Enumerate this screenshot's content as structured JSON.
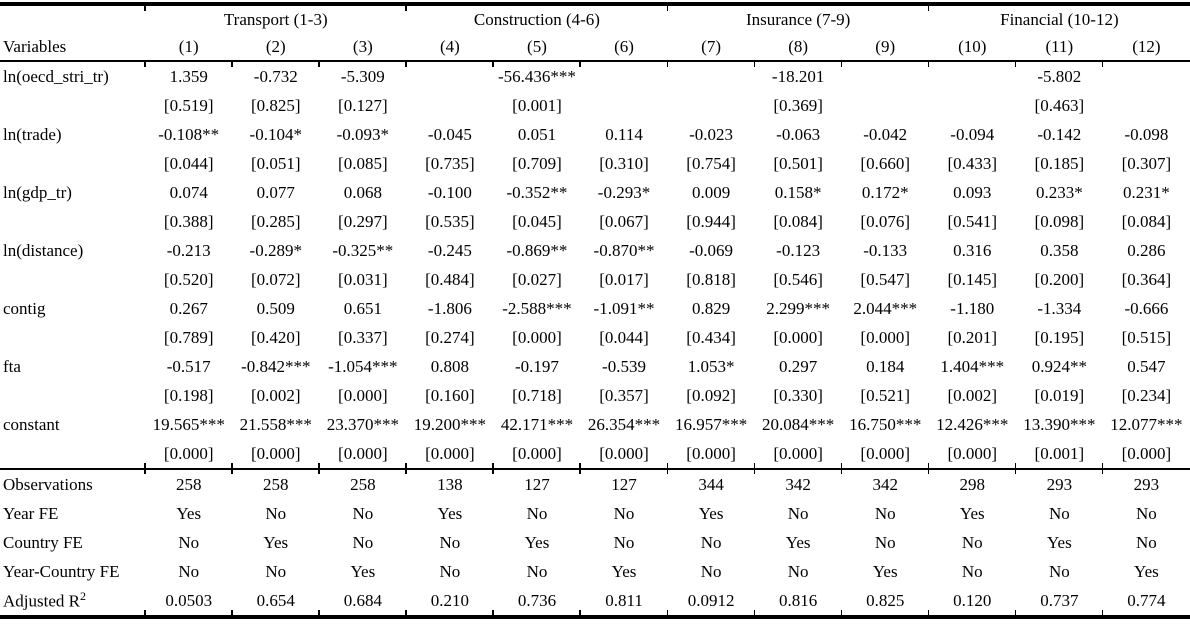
{
  "page": {
    "background_color": "#ffffff",
    "text_color": "#000000",
    "rule_color": "#000000"
  },
  "table": {
    "stub_header": "Variables",
    "groups": [
      "Transport (1-3)",
      "Construction (4-6)",
      "Insurance (7-9)",
      "Financial (10-12)"
    ],
    "columns": [
      "(1)",
      "(2)",
      "(3)",
      "(4)",
      "(5)",
      "(6)",
      "(7)",
      "(8)",
      "(9)",
      "(10)",
      "(11)",
      "(12)"
    ],
    "rows": [
      {
        "label": "ln(oecd_stri_tr)",
        "coefs": [
          "1.359",
          "-0.732",
          "-5.309",
          "",
          "-56.436***",
          "",
          "",
          "-18.201",
          "",
          "",
          "-5.802",
          ""
        ],
        "pvals": [
          "[0.519]",
          "[0.825]",
          "[0.127]",
          "",
          "[0.001]",
          "",
          "",
          "[0.369]",
          "",
          "",
          "[0.463]",
          ""
        ]
      },
      {
        "label": "ln(trade)",
        "coefs": [
          "-0.108**",
          "-0.104*",
          "-0.093*",
          "-0.045",
          "0.051",
          "0.114",
          "-0.023",
          "-0.063",
          "-0.042",
          "-0.094",
          "-0.142",
          "-0.098"
        ],
        "pvals": [
          "[0.044]",
          "[0.051]",
          "[0.085]",
          "[0.735]",
          "[0.709]",
          "[0.310]",
          "[0.754]",
          "[0.501]",
          "[0.660]",
          "[0.433]",
          "[0.185]",
          "[0.307]"
        ]
      },
      {
        "label": "ln(gdp_tr)",
        "coefs": [
          "0.074",
          "0.077",
          "0.068",
          "-0.100",
          "-0.352**",
          "-0.293*",
          "0.009",
          "0.158*",
          "0.172*",
          "0.093",
          "0.233*",
          "0.231*"
        ],
        "pvals": [
          "[0.388]",
          "[0.285]",
          "[0.297]",
          "[0.535]",
          "[0.045]",
          "[0.067]",
          "[0.944]",
          "[0.084]",
          "[0.076]",
          "[0.541]",
          "[0.098]",
          "[0.084]"
        ]
      },
      {
        "label": "ln(distance)",
        "coefs": [
          "-0.213",
          "-0.289*",
          "-0.325**",
          "-0.245",
          "-0.869**",
          "-0.870**",
          "-0.069",
          "-0.123",
          "-0.133",
          "0.316",
          "0.358",
          "0.286"
        ],
        "pvals": [
          "[0.520]",
          "[0.072]",
          "[0.031]",
          "[0.484]",
          "[0.027]",
          "[0.017]",
          "[0.818]",
          "[0.546]",
          "[0.547]",
          "[0.145]",
          "[0.200]",
          "[0.364]"
        ]
      },
      {
        "label": "contig",
        "coefs": [
          "0.267",
          "0.509",
          "0.651",
          "-1.806",
          "-2.588***",
          "-1.091**",
          "0.829",
          "2.299***",
          "2.044***",
          "-1.180",
          "-1.334",
          "-0.666"
        ],
        "pvals": [
          "[0.789]",
          "[0.420]",
          "[0.337]",
          "[0.274]",
          "[0.000]",
          "[0.044]",
          "[0.434]",
          "[0.000]",
          "[0.000]",
          "[0.201]",
          "[0.195]",
          "[0.515]"
        ]
      },
      {
        "label": "fta",
        "coefs": [
          "-0.517",
          "-0.842***",
          "-1.054***",
          "0.808",
          "-0.197",
          "-0.539",
          "1.053*",
          "0.297",
          "0.184",
          "1.404***",
          "0.924**",
          "0.547"
        ],
        "pvals": [
          "[0.198]",
          "[0.002]",
          "[0.000]",
          "[0.160]",
          "[0.718]",
          "[0.357]",
          "[0.092]",
          "[0.330]",
          "[0.521]",
          "[0.002]",
          "[0.019]",
          "[0.234]"
        ]
      },
      {
        "label": "constant",
        "coefs": [
          "19.565***",
          "21.558***",
          "23.370***",
          "19.200***",
          "42.171***",
          "26.354***",
          "16.957***",
          "20.084***",
          "16.750***",
          "12.426***",
          "13.390***",
          "12.077***"
        ],
        "pvals": [
          "[0.000]",
          "[0.000]",
          "[0.000]",
          "[0.000]",
          "[0.000]",
          "[0.000]",
          "[0.000]",
          "[0.000]",
          "[0.000]",
          "[0.000]",
          "[0.001]",
          "[0.000]"
        ]
      }
    ],
    "summary": [
      {
        "label": "Observations",
        "values": [
          "258",
          "258",
          "258",
          "138",
          "127",
          "127",
          "344",
          "342",
          "342",
          "298",
          "293",
          "293"
        ]
      },
      {
        "label": "Year FE",
        "values": [
          "Yes",
          "No",
          "No",
          "Yes",
          "No",
          "No",
          "Yes",
          "No",
          "No",
          "Yes",
          "No",
          "No"
        ]
      },
      {
        "label": "Country FE",
        "values": [
          "No",
          "Yes",
          "No",
          "No",
          "Yes",
          "No",
          "No",
          "Yes",
          "No",
          "No",
          "Yes",
          "No"
        ]
      },
      {
        "label": "Year-Country FE",
        "values": [
          "No",
          "No",
          "Yes",
          "No",
          "No",
          "Yes",
          "No",
          "No",
          "Yes",
          "No",
          "No",
          "Yes"
        ]
      },
      {
        "label": "Adjusted R",
        "label_sup": "2",
        "values": [
          "0.0503",
          "0.654",
          "0.684",
          "0.210",
          "0.736",
          "0.811",
          "0.0912",
          "0.816",
          "0.825",
          "0.120",
          "0.737",
          "0.774"
        ]
      }
    ]
  }
}
